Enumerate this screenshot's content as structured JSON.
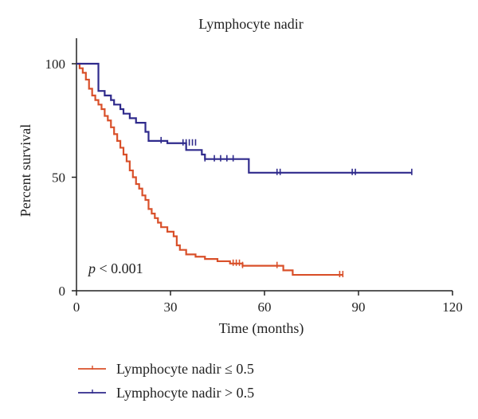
{
  "chart_data": {
    "type": "line",
    "title": "Lymphocyte nadir",
    "xlabel": "Time (months)",
    "ylabel": "Percent survival",
    "xlim": [
      0,
      120
    ],
    "ylim": [
      0,
      100
    ],
    "xticks": [
      "0",
      "30",
      "60",
      "90",
      "120"
    ],
    "yticks": [
      "0",
      "50",
      "100"
    ],
    "annotation_p": "p",
    "annotation_rest": " < 0.001",
    "grid": false,
    "legend_position": "bottom-left",
    "series": [
      {
        "name": "Lymphocyte nadir ≤ 0.5",
        "color": "#d9502a",
        "steps": [
          [
            0,
            100
          ],
          [
            1,
            98
          ],
          [
            2,
            96
          ],
          [
            3,
            93
          ],
          [
            4,
            89
          ],
          [
            5,
            86
          ],
          [
            6,
            84
          ],
          [
            7,
            82
          ],
          [
            8,
            80
          ],
          [
            9,
            77
          ],
          [
            10,
            75
          ],
          [
            11,
            72
          ],
          [
            12,
            69
          ],
          [
            13,
            66
          ],
          [
            14,
            63
          ],
          [
            15,
            60
          ],
          [
            16,
            57
          ],
          [
            17,
            53
          ],
          [
            18,
            50
          ],
          [
            19,
            47
          ],
          [
            20,
            45
          ],
          [
            21,
            42
          ],
          [
            22,
            40
          ],
          [
            23,
            36
          ],
          [
            24,
            34
          ],
          [
            25,
            32
          ],
          [
            26,
            30
          ],
          [
            27,
            28
          ],
          [
            29,
            26
          ],
          [
            31,
            24
          ],
          [
            32,
            20
          ],
          [
            33,
            18
          ],
          [
            35,
            16
          ],
          [
            38,
            15
          ],
          [
            41,
            14
          ],
          [
            45,
            13
          ],
          [
            49,
            12
          ],
          [
            53,
            11
          ],
          [
            56,
            11
          ],
          [
            66,
            9
          ],
          [
            69,
            7
          ],
          [
            85,
            7
          ]
        ],
        "censored": [
          [
            50,
            12
          ],
          [
            51,
            12
          ],
          [
            52,
            12
          ],
          [
            53,
            11
          ],
          [
            64,
            11
          ],
          [
            84,
            7
          ],
          [
            85,
            7
          ]
        ]
      },
      {
        "name": "Lymphocyte nadir > 0.5",
        "color": "#2f2a8c",
        "steps": [
          [
            0,
            100
          ],
          [
            7,
            88
          ],
          [
            9,
            86
          ],
          [
            11,
            84
          ],
          [
            12,
            82
          ],
          [
            14,
            80
          ],
          [
            15,
            78
          ],
          [
            17,
            76
          ],
          [
            19,
            74
          ],
          [
            22,
            70
          ],
          [
            23,
            66
          ],
          [
            29,
            65
          ],
          [
            35,
            62
          ],
          [
            40,
            60
          ],
          [
            41,
            58
          ],
          [
            55,
            52
          ],
          [
            107,
            52
          ]
        ],
        "censored": [
          [
            27,
            66
          ],
          [
            34,
            65
          ],
          [
            35,
            65
          ],
          [
            36,
            65
          ],
          [
            37,
            65
          ],
          [
            38,
            65
          ],
          [
            41,
            58
          ],
          [
            44,
            58
          ],
          [
            46,
            58
          ],
          [
            48,
            58
          ],
          [
            50,
            58
          ],
          [
            64,
            52
          ],
          [
            65,
            52
          ],
          [
            88,
            52
          ],
          [
            89,
            52
          ],
          [
            107,
            52
          ]
        ]
      }
    ]
  }
}
